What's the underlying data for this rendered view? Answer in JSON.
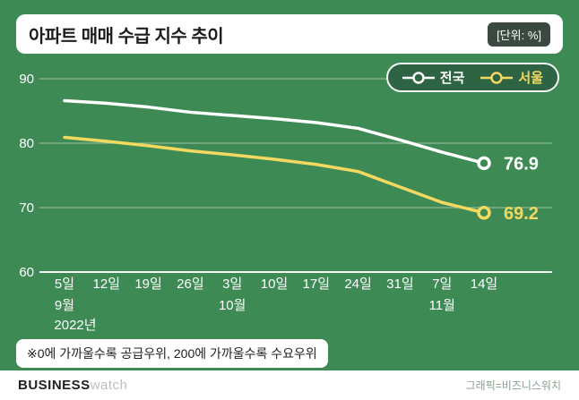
{
  "header": {
    "title": "아파트 매매 수급 지수 추이",
    "unit_badge": "[단위: %]"
  },
  "legend": {
    "items": [
      {
        "label": "전국",
        "color": "#ffffff"
      },
      {
        "label": "서울",
        "color": "#f3d960"
      }
    ]
  },
  "chart_data": {
    "type": "line",
    "x_tick_labels": [
      "5일",
      "12일",
      "19일",
      "26일",
      "3일",
      "10일",
      "17일",
      "24일",
      "31일",
      "7일",
      "14일"
    ],
    "month_labels": [
      {
        "text": "9월",
        "tick_index": 0,
        "row": 1
      },
      {
        "text": "2022년",
        "tick_index": 0,
        "row": 2
      },
      {
        "text": "10월",
        "tick_index": 4,
        "row": 1
      },
      {
        "text": "11월",
        "tick_index": 9,
        "row": 1
      }
    ],
    "y_ticks": [
      60,
      70,
      80,
      90
    ],
    "ylim": [
      60,
      90
    ],
    "grid": true,
    "legend_position": "top-right",
    "series": [
      {
        "name": "전국",
        "color": "#ffffff",
        "values": [
          86.6,
          86.2,
          85.6,
          84.8,
          84.3,
          83.8,
          83.2,
          82.3,
          80.5,
          78.6,
          76.9
        ],
        "end_label": "76.9"
      },
      {
        "name": "서울",
        "color": "#f3d960",
        "values": [
          80.9,
          80.3,
          79.6,
          78.8,
          78.2,
          77.5,
          76.7,
          75.6,
          73.2,
          70.8,
          69.2
        ],
        "end_label": "69.2"
      }
    ]
  },
  "footnote": "※0에 가까울수록 공급우위, 200에 가까울수록 수요우위",
  "footer": {
    "logo_bold": "BUSINESS",
    "logo_light": "watch",
    "credit": "그래픽=비즈니스워치"
  },
  "colors": {
    "background": "#3e8a55",
    "grid": "#ffffff",
    "badge_bg": "#3b4a40",
    "legend_bg": "#2e6343",
    "national_line": "#ffffff",
    "seoul_line": "#f3d960"
  }
}
